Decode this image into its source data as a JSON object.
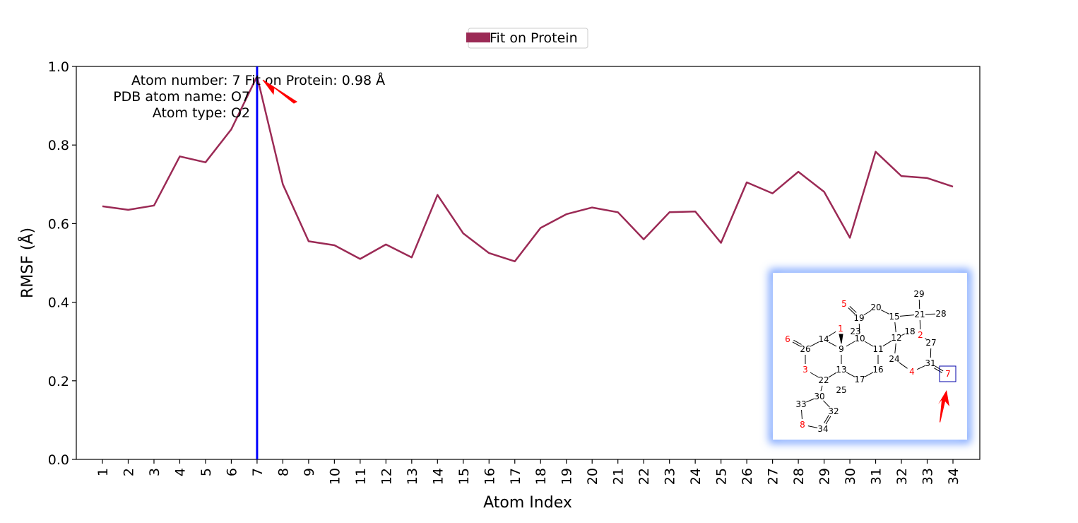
{
  "chart_data": {
    "type": "line",
    "xlabel": "Atom Index",
    "ylabel": "RMSF (Å)",
    "ylim": [
      0.0,
      1.0
    ],
    "yticks": [
      "0.0",
      "0.2",
      "0.4",
      "0.6",
      "0.8",
      "1.0"
    ],
    "categories": [
      "1",
      "2",
      "3",
      "4",
      "5",
      "6",
      "7",
      "8",
      "9",
      "10",
      "11",
      "12",
      "13",
      "14",
      "15",
      "16",
      "17",
      "18",
      "19",
      "20",
      "21",
      "22",
      "23",
      "24",
      "25",
      "26",
      "27",
      "28",
      "29",
      "30",
      "31",
      "32",
      "33",
      "34"
    ],
    "series": [
      {
        "name": "Fit on Protein",
        "color": "#9b2a55",
        "values": [
          0.644,
          0.635,
          0.646,
          0.771,
          0.756,
          0.84,
          0.975,
          0.7,
          0.555,
          0.545,
          0.51,
          0.547,
          0.514,
          0.673,
          0.575,
          0.525,
          0.504,
          0.589,
          0.624,
          0.641,
          0.629,
          0.56,
          0.629,
          0.631,
          0.551,
          0.705,
          0.677,
          0.732,
          0.681,
          0.564,
          0.783,
          0.721,
          0.716,
          0.694
        ]
      }
    ],
    "legend": {
      "position": "top-center",
      "entries": [
        "Fit on Protein"
      ]
    },
    "highlight": {
      "atom_index": 7,
      "color": "#0000ff"
    },
    "annotation": {
      "lines": [
        "Atom number: 7 Fit on Protein: 0.98 Å",
        "PDB atom name: O7",
        "Atom type: O2"
      ],
      "arrow_color": "#ff0000"
    },
    "grid": false
  },
  "molecule_inset": {
    "border_glow_color": "#6f9cff",
    "highlight_box_color": "#0000aa",
    "arrow_color": "#ff0000",
    "atoms": [
      {
        "label": "1",
        "color": "#ff0000"
      },
      {
        "label": "2",
        "color": "#ff0000"
      },
      {
        "label": "3",
        "color": "#ff0000"
      },
      {
        "label": "4",
        "color": "#ff0000"
      },
      {
        "label": "5",
        "color": "#ff0000"
      },
      {
        "label": "6",
        "color": "#ff0000"
      },
      {
        "label": "7",
        "color": "#ff0000"
      },
      {
        "label": "8",
        "color": "#ff0000"
      },
      {
        "label": "9",
        "color": "#000000"
      },
      {
        "label": "10",
        "color": "#000000"
      },
      {
        "label": "11",
        "color": "#000000"
      },
      {
        "label": "12",
        "color": "#000000"
      },
      {
        "label": "13",
        "color": "#000000"
      },
      {
        "label": "14",
        "color": "#000000"
      },
      {
        "label": "15",
        "color": "#000000"
      },
      {
        "label": "16",
        "color": "#000000"
      },
      {
        "label": "17",
        "color": "#000000"
      },
      {
        "label": "18",
        "color": "#000000"
      },
      {
        "label": "19",
        "color": "#000000"
      },
      {
        "label": "20",
        "color": "#000000"
      },
      {
        "label": "21",
        "color": "#000000"
      },
      {
        "label": "22",
        "color": "#000000"
      },
      {
        "label": "23",
        "color": "#000000"
      },
      {
        "label": "24",
        "color": "#000000"
      },
      {
        "label": "25",
        "color": "#000000"
      },
      {
        "label": "26",
        "color": "#000000"
      },
      {
        "label": "27",
        "color": "#000000"
      },
      {
        "label": "28",
        "color": "#000000"
      },
      {
        "label": "29",
        "color": "#000000"
      },
      {
        "label": "30",
        "color": "#000000"
      },
      {
        "label": "31",
        "color": "#000000"
      },
      {
        "label": "32",
        "color": "#000000"
      },
      {
        "label": "33",
        "color": "#000000"
      },
      {
        "label": "34",
        "color": "#000000"
      }
    ]
  }
}
